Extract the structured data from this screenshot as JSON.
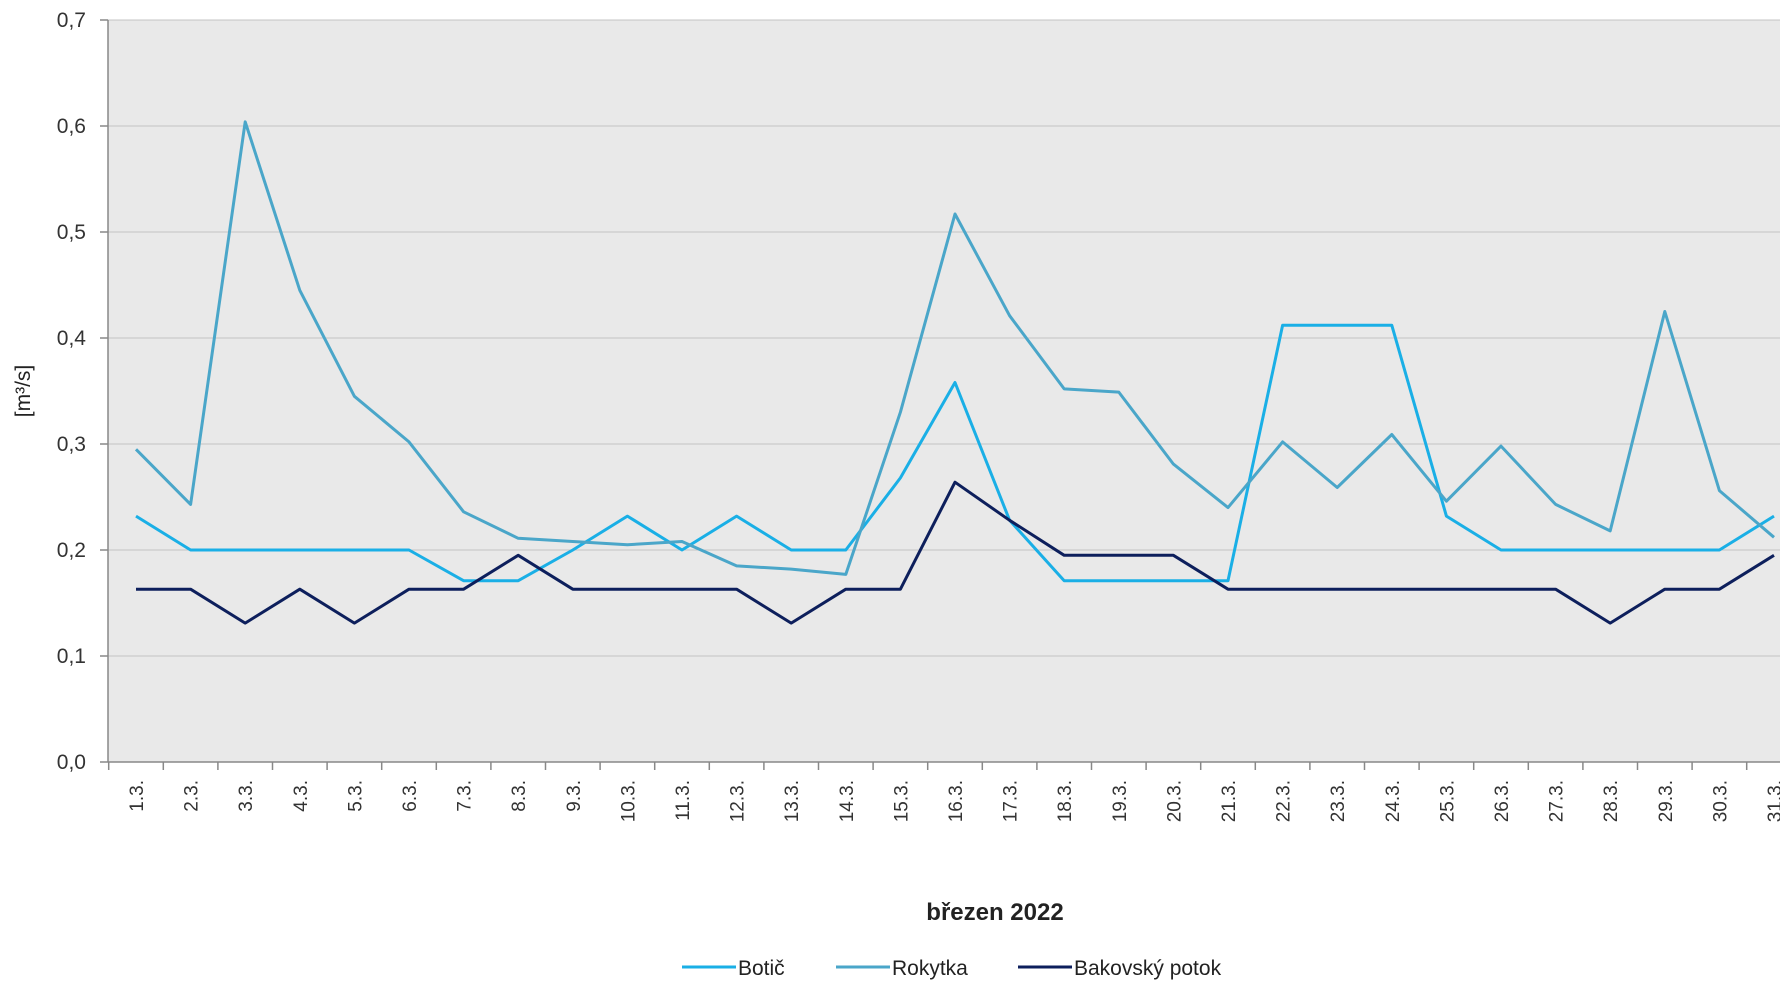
{
  "chart_data": {
    "type": "line",
    "xlabel": "březen 2022",
    "ylabel": "[m³/s]",
    "ylim": [
      0,
      0.7
    ],
    "yticks": [
      "0,0",
      "0,1",
      "0,2",
      "0,3",
      "0,4",
      "0,5",
      "0,6",
      "0,7"
    ],
    "grid": true,
    "legend_position": "bottom",
    "categories": [
      "1.3.",
      "2.3.",
      "3.3.",
      "4.3.",
      "5.3.",
      "6.3.",
      "7.3.",
      "8.3.",
      "9.3.",
      "10.3.",
      "11.3.",
      "12.3.",
      "13.3.",
      "14.3.",
      "15.3.",
      "16.3.",
      "17.3.",
      "18.3.",
      "19.3.",
      "20.3.",
      "21.3.",
      "22.3.",
      "23.3.",
      "24.3.",
      "25.3.",
      "26.3.",
      "27.3.",
      "28.3.",
      "29.3.",
      "30.3.",
      "31.3."
    ],
    "series": [
      {
        "name": "Botič",
        "color": "#1aafe6",
        "values": [
          0.232,
          0.2,
          0.2,
          0.2,
          0.2,
          0.2,
          0.171,
          0.171,
          0.2,
          0.232,
          0.2,
          0.232,
          0.2,
          0.2,
          0.268,
          0.358,
          0.228,
          0.171,
          0.171,
          0.171,
          0.171,
          0.412,
          0.412,
          0.412,
          0.232,
          0.2,
          0.2,
          0.2,
          0.2,
          0.2,
          0.232
        ]
      },
      {
        "name": "Rokytka",
        "color": "#4aa6c9",
        "values": [
          0.295,
          0.243,
          0.604,
          0.445,
          0.345,
          0.302,
          0.236,
          0.211,
          0.208,
          0.205,
          0.208,
          0.185,
          0.182,
          0.177,
          0.33,
          0.517,
          0.421,
          0.352,
          0.349,
          0.281,
          0.24,
          0.302,
          0.259,
          0.309,
          0.246,
          0.298,
          0.243,
          0.218,
          0.425,
          0.256,
          0.212
        ]
      },
      {
        "name": "Bakovský potok",
        "color": "#0d1f5c",
        "values": [
          0.163,
          0.163,
          0.131,
          0.163,
          0.131,
          0.163,
          0.163,
          0.195,
          0.163,
          0.163,
          0.163,
          0.163,
          0.131,
          0.163,
          0.163,
          0.264,
          0.228,
          0.195,
          0.195,
          0.195,
          0.163,
          0.163,
          0.163,
          0.163,
          0.163,
          0.163,
          0.163,
          0.131,
          0.163,
          0.163,
          0.195
        ]
      }
    ]
  }
}
